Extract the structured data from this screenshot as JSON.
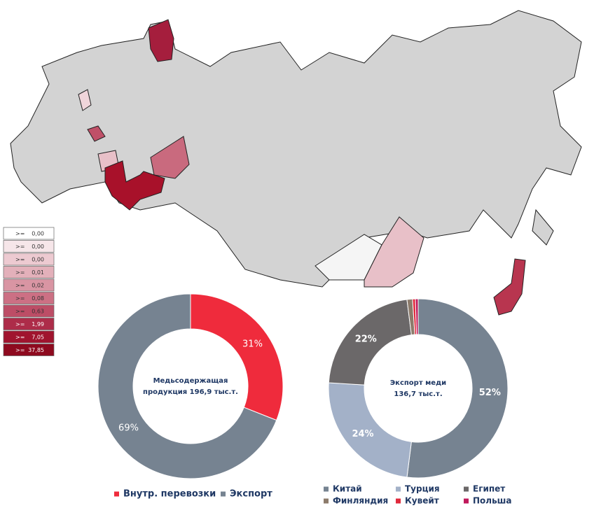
{
  "map_legend": {
    "items": [
      {
        "label": ">=",
        "value": "0,00",
        "color": "#ffffff"
      },
      {
        "label": ">=",
        "value": "0,00",
        "color": "#f6e6e9"
      },
      {
        "label": ">=",
        "value": "0,00",
        "color": "#edcad1"
      },
      {
        "label": ">=",
        "value": "0,01",
        "color": "#e3b0ba"
      },
      {
        "label": ">=",
        "value": "0,02",
        "color": "#d995a3"
      },
      {
        "label": ">=",
        "value": "0,08",
        "color": "#cc7084"
      },
      {
        "label": ">=",
        "value": "0,63",
        "color": "#bd4d66"
      },
      {
        "label": ">=",
        "value": "1,99",
        "color": "#ad2c49"
      },
      {
        "label": ">=",
        "value": "7,05",
        "color": "#a0142e"
      },
      {
        "label": ">=",
        "value": "37,85",
        "color": "#8e0a1f"
      }
    ]
  },
  "chart_data": [
    {
      "type": "pie",
      "center_label": [
        "Медьсодержащая",
        "продукция  196,9 тыс.т."
      ],
      "categories": [
        "Внутр. перевозки",
        "Экспорт"
      ],
      "values": [
        31,
        69
      ],
      "value_labels": [
        "31%",
        "69%"
      ],
      "colors": [
        "#ef2b3c",
        "#768391"
      ]
    },
    {
      "type": "pie",
      "center_label": [
        "Экспорт меди",
        "136,7 тыс.т."
      ],
      "categories": [
        "Китай",
        "Турция",
        "Египет",
        "Финляндия",
        "Кувейт",
        "Польша"
      ],
      "values": [
        52,
        24,
        22,
        1,
        0.5,
        0.5
      ],
      "value_labels": [
        "52%",
        "24%",
        "22%",
        null,
        null,
        null
      ],
      "colors": [
        "#768391",
        "#a3b1c8",
        "#6b6869",
        "#8c7b6b",
        "#e0293b",
        "#c0185b"
      ]
    }
  ]
}
